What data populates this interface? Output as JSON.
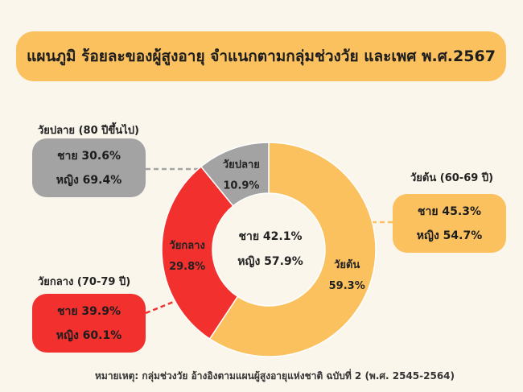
{
  "title": "แผนภูมิ ร้อยละของผู้สูงอายุ จำแนกตามกลุ่มช่วงวัย และเพศ พ.ศ.2567",
  "center": {
    "male_text": "ชาย 42.1%",
    "female_text": "หญิง 57.9%"
  },
  "groups": {
    "late": {
      "label": "วัยปลาย (80 ปีขึ้นไป)",
      "male_text": "ชาย 30.6%",
      "female_text": "หญิง 69.4%"
    },
    "middle": {
      "label": "วัยกลาง (70-79 ปี)",
      "male_text": "ชาย 39.9%",
      "female_text": "หญิง 60.1%"
    },
    "early": {
      "label": "วัยต้น (60-69 ปี)",
      "male_text": "ชาย 45.3%",
      "female_text": "หญิง 54.7%"
    }
  },
  "footnote": "หมายเหตุ: กลุ่มช่วงวัย อ้างอิงตามแผนผู้สูงอายุแห่งชาติ ฉบับที่ 2 (พ.ศ. 2545-2564)",
  "colors": {
    "early": "#fbc15f",
    "middle": "#f2312f",
    "late": "#a3a3a3",
    "background": "#fbf6ec"
  },
  "chart_data": {
    "type": "pie",
    "categories": [
      "วัยต้น",
      "วัยกลาง",
      "วัยปลาย"
    ],
    "values": [
      59.3,
      29.8,
      10.9
    ],
    "value_labels": [
      "59.3%",
      "29.8%",
      "10.9%"
    ],
    "colors": [
      "#fbc15f",
      "#f2312f",
      "#a3a3a3"
    ],
    "title": "แผนภูมิ ร้อยละของผู้สูงอายุ จำแนกตามกลุ่มช่วงวัย และเพศ พ.ศ.2567"
  }
}
